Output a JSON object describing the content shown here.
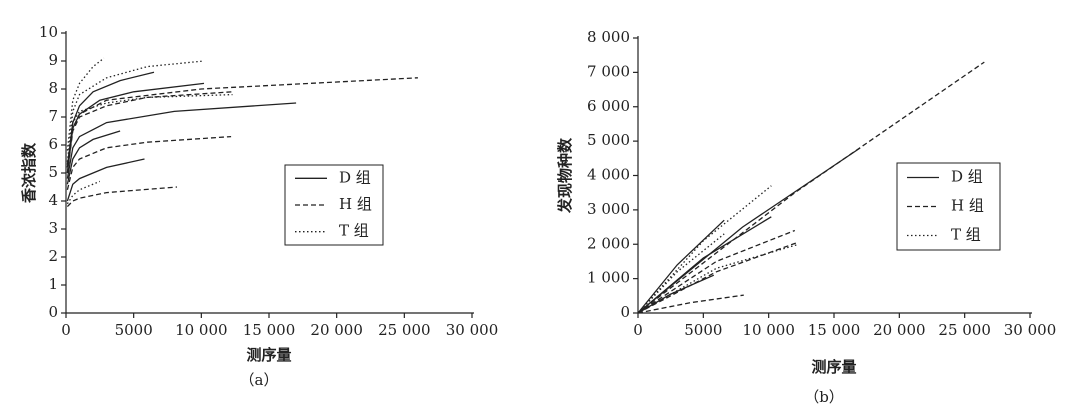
{
  "chart_data": [
    {
      "type": "line",
      "xlabel": "测序量",
      "ylabel": "香浓指数",
      "caption": "（a）",
      "xlim": [
        0,
        30000
      ],
      "ylim": [
        0,
        10
      ],
      "xticks": [
        0,
        5000,
        {
          "value": 10000,
          "label": "10 000"
        },
        {
          "value": 15000,
          "label": "15 000"
        },
        {
          "value": 20000,
          "label": "20 000"
        },
        {
          "value": 25000,
          "label": "25 000"
        },
        {
          "value": 30000,
          "label": "30 000"
        }
      ],
      "yticks": [
        0,
        1,
        2,
        3,
        4,
        5,
        6,
        7,
        8,
        9,
        10
      ],
      "series": [
        {
          "name": "D 组",
          "color": "#222222",
          "dash": "solid",
          "curves": [
            {
              "x": [
                100,
                500,
                1000,
                2000,
                4000,
                6500
              ],
              "values": [
                5.2,
                6.8,
                7.4,
                7.9,
                8.3,
                8.6
              ]
            },
            {
              "x": [
                100,
                500,
                1000,
                2500,
                5000,
                10200
              ],
              "values": [
                5.0,
                6.6,
                7.1,
                7.6,
                7.9,
                8.2
              ]
            },
            {
              "x": [
                100,
                500,
                1000,
                3000,
                8000,
                17000
              ],
              "values": [
                4.8,
                5.9,
                6.3,
                6.8,
                7.2,
                7.5
              ]
            },
            {
              "x": [
                100,
                500,
                1000,
                2000,
                4000
              ],
              "values": [
                4.6,
                5.5,
                5.9,
                6.2,
                6.5
              ]
            },
            {
              "x": [
                100,
                500,
                1000,
                3000,
                5800
              ],
              "values": [
                4.0,
                4.6,
                4.8,
                5.2,
                5.5
              ]
            }
          ]
        },
        {
          "name": "H 组",
          "color": "#222222",
          "dash": "dashed",
          "curves": [
            {
              "x": [
                100,
                500,
                1000,
                3000,
                10000,
                26000
              ],
              "values": [
                5.3,
                6.6,
                7.1,
                7.6,
                8.0,
                8.4
              ]
            },
            {
              "x": [
                100,
                500,
                1000,
                3000,
                6000,
                12300
              ],
              "values": [
                5.0,
                6.5,
                7.0,
                7.4,
                7.7,
                7.9
              ]
            },
            {
              "x": [
                100,
                500,
                1000,
                3000,
                6000,
                12200
              ],
              "values": [
                4.4,
                5.2,
                5.5,
                5.9,
                6.1,
                6.3
              ]
            },
            {
              "x": [
                100,
                500,
                1000,
                3000,
                8200
              ],
              "values": [
                3.8,
                4.0,
                4.1,
                4.3,
                4.5
              ]
            }
          ]
        },
        {
          "name": "T 组",
          "color": "#222222",
          "dash": "dotted",
          "curves": [
            {
              "x": [
                100,
                500,
                1000,
                2000,
                2800
              ],
              "values": [
                5.8,
                7.6,
                8.2,
                8.8,
                9.1
              ]
            },
            {
              "x": [
                100,
                500,
                1000,
                3000,
                6000,
                10200
              ],
              "values": [
                5.4,
                7.2,
                7.8,
                8.4,
                8.8,
                9.0
              ]
            },
            {
              "x": [
                100,
                500,
                1000,
                3000,
                6000,
                12300
              ],
              "values": [
                5.2,
                6.8,
                7.2,
                7.5,
                7.7,
                7.8
              ]
            },
            {
              "x": [
                100,
                500,
                1000,
                2500
              ],
              "values": [
                3.9,
                4.2,
                4.4,
                4.7
              ]
            }
          ]
        }
      ]
    },
    {
      "type": "line",
      "xlabel": "测序量",
      "ylabel": "发现物种数",
      "caption": "（b）",
      "xlim": [
        0,
        30000
      ],
      "ylim": [
        0,
        8000
      ],
      "xticks": [
        0,
        5000,
        {
          "value": 10000,
          "label": "10 000"
        },
        {
          "value": 15000,
          "label": "15 000"
        },
        {
          "value": 20000,
          "label": "20 000"
        },
        {
          "value": 25000,
          "label": "25 000"
        },
        {
          "value": 30000,
          "label": "30 000"
        }
      ],
      "yticks": [
        0,
        {
          "value": 1000,
          "label": "1 000"
        },
        {
          "value": 2000,
          "label": "2 000"
        },
        {
          "value": 3000,
          "label": "3 000"
        },
        {
          "value": 4000,
          "label": "4 000"
        },
        {
          "value": 5000,
          "label": "5 000"
        },
        {
          "value": 6000,
          "label": "6 000"
        },
        {
          "value": 7000,
          "label": "7 000"
        },
        {
          "value": 8000,
          "label": "8 000"
        }
      ],
      "series": [
        {
          "name": "D 组",
          "color": "#222222",
          "dash": "solid",
          "curves": [
            {
              "x": [
                0,
                3000,
                6600
              ],
              "values": [
                0,
                1400,
                2700
              ]
            },
            {
              "x": [
                0,
                5000,
                10200
              ],
              "values": [
                0,
                1600,
                2800
              ]
            },
            {
              "x": [
                0,
                8000,
                17000
              ],
              "values": [
                0,
                2500,
                4800
              ]
            },
            {
              "x": [
                0,
                2500,
                5800
              ],
              "values": [
                0,
                550,
                1100
              ]
            }
          ]
        },
        {
          "name": "H 组",
          "color": "#222222",
          "dash": "dashed",
          "curves": [
            {
              "x": [
                0,
                12000,
                26500
              ],
              "values": [
                0,
                3500,
                7300
              ]
            },
            {
              "x": [
                0,
                6000,
                12000
              ],
              "values": [
                0,
                1500,
                2400
              ]
            },
            {
              "x": [
                0,
                6000,
                12200
              ],
              "values": [
                0,
                1200,
                2050
              ]
            },
            {
              "x": [
                0,
                4000,
                8100
              ],
              "values": [
                0,
                300,
                520
              ]
            }
          ]
        },
        {
          "name": "T 组",
          "color": "#222222",
          "dash": "dotted",
          "curves": [
            {
              "x": [
                0,
                5000,
                10200
              ],
              "values": [
                0,
                2100,
                3700
              ]
            },
            {
              "x": [
                0,
                6000,
                12300
              ],
              "values": [
                0,
                1300,
                2000
              ]
            },
            {
              "x": [
                0,
                3000,
                6600
              ],
              "values": [
                0,
                1200,
                2300
              ]
            }
          ]
        }
      ]
    }
  ]
}
